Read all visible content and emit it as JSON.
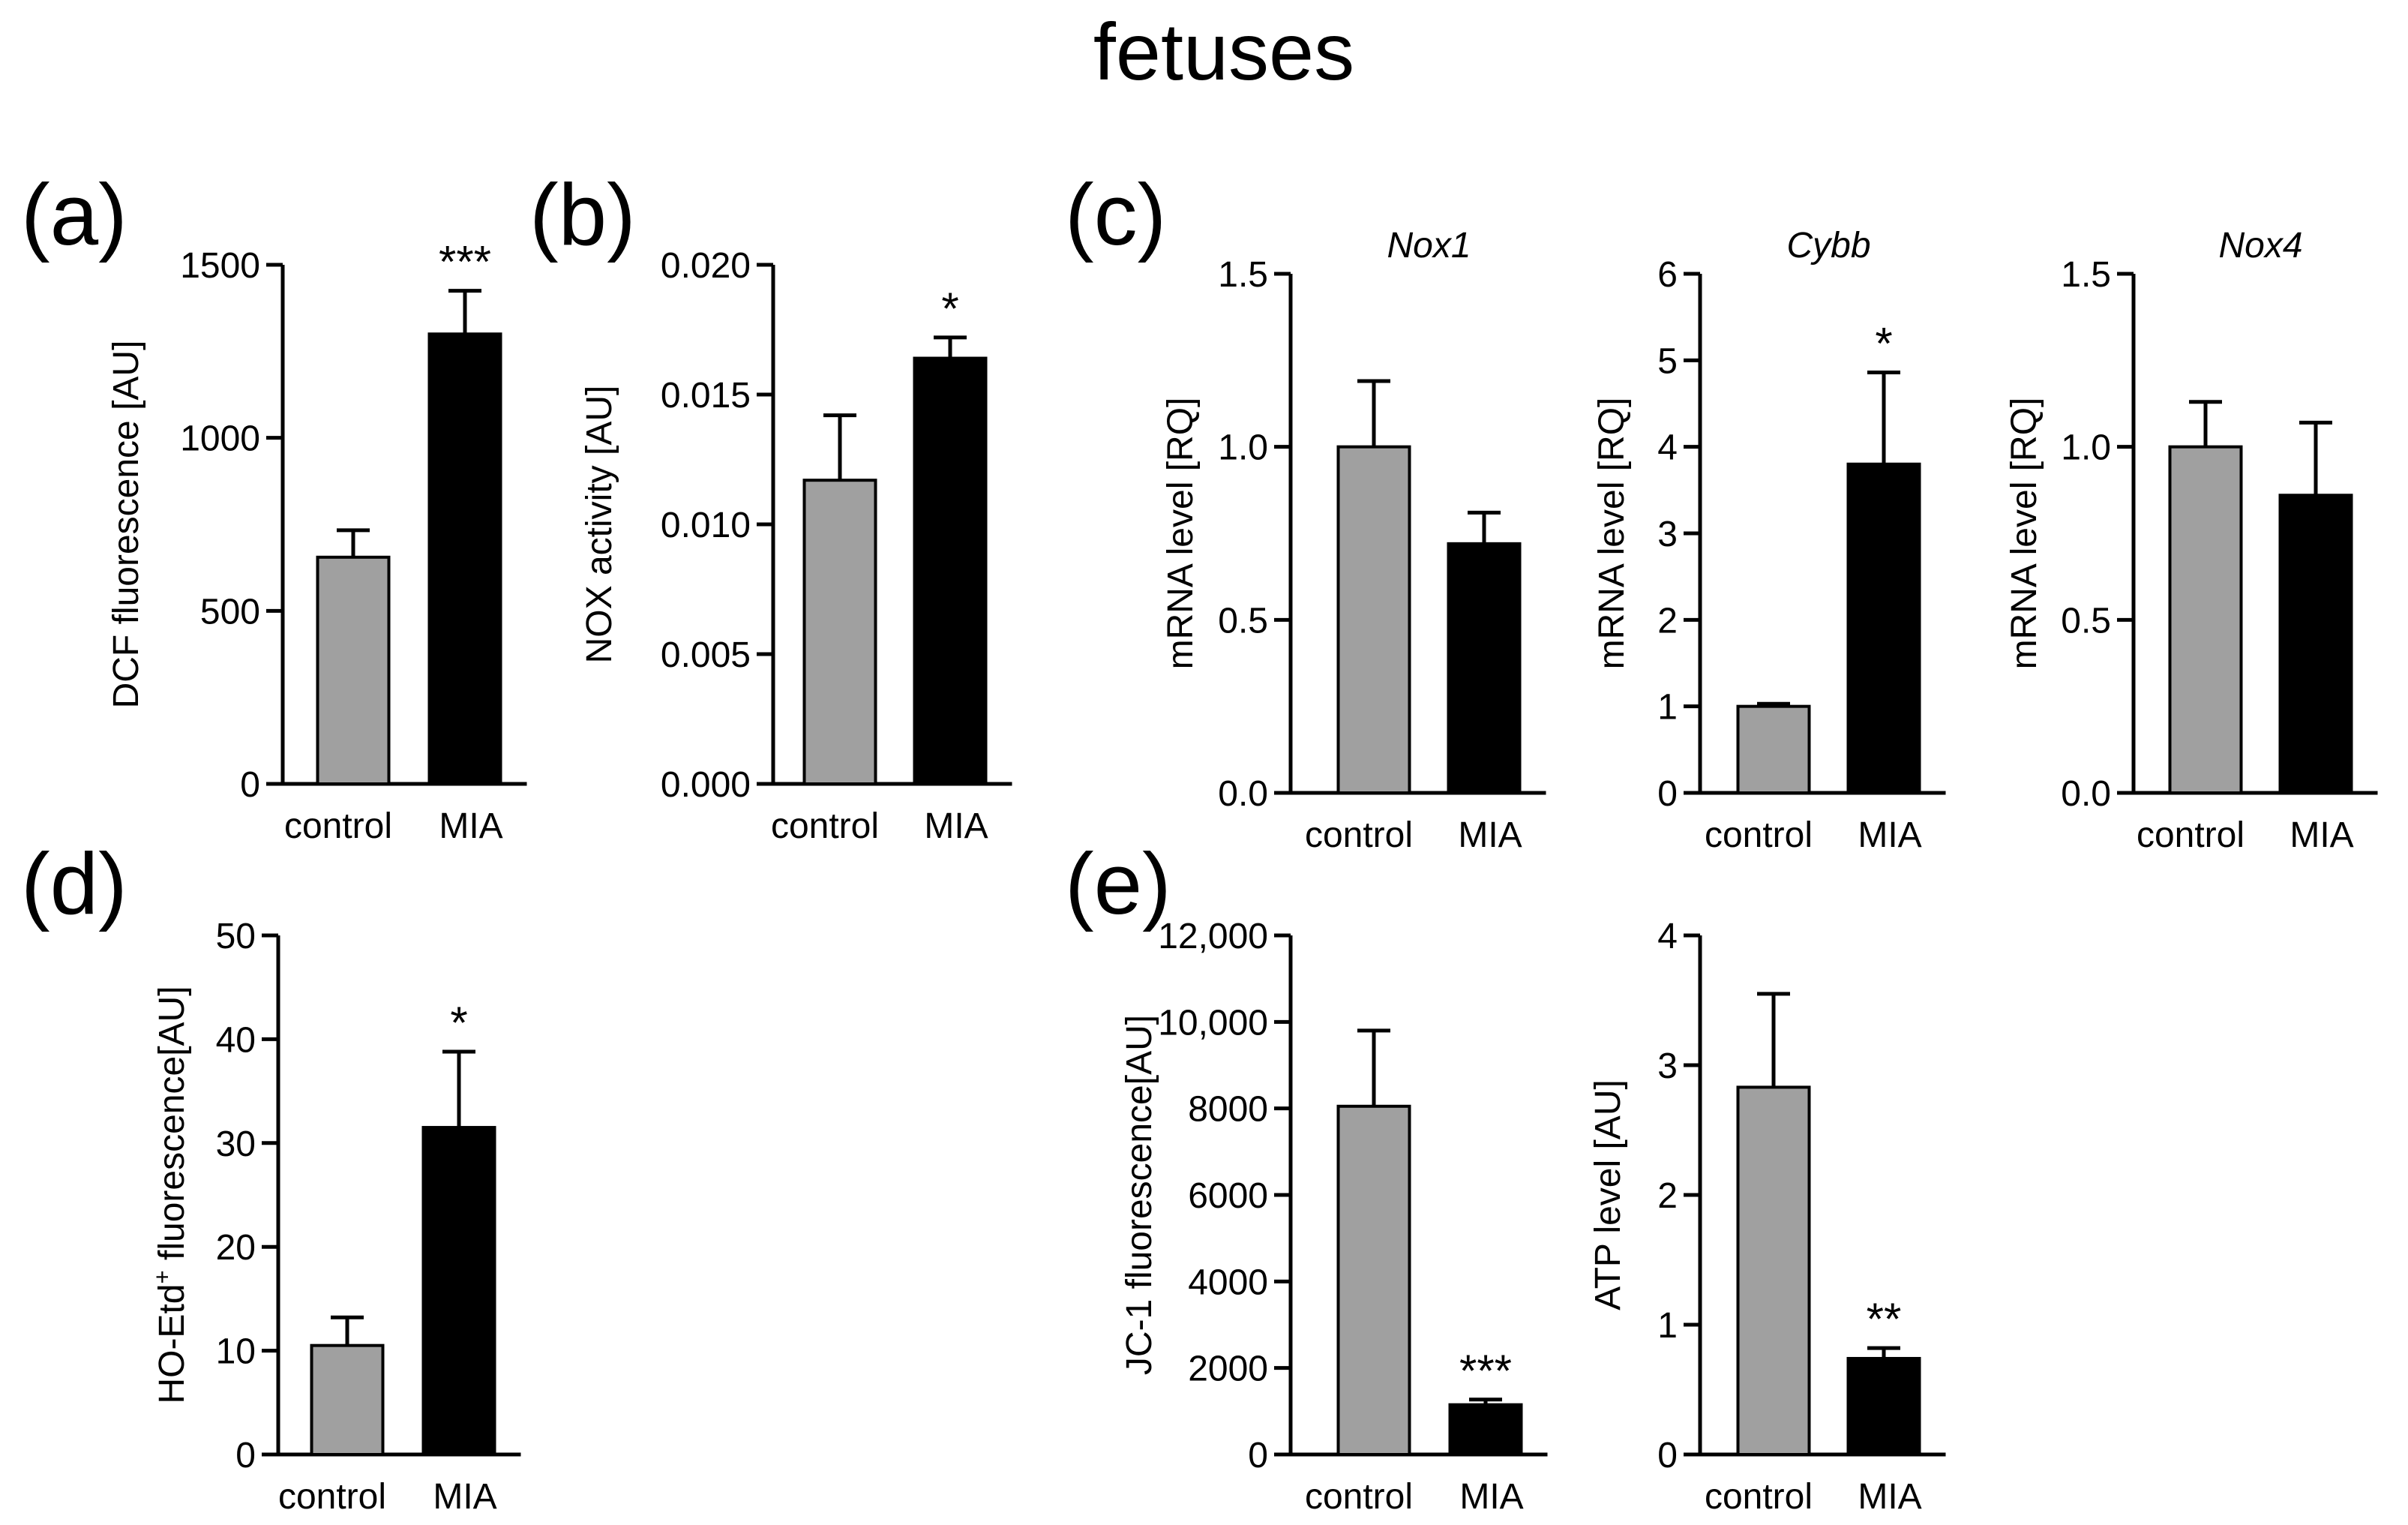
{
  "figure": {
    "title": "fetuses",
    "bar_colors": {
      "control": "#a0a0a0",
      "MIA": "#000000"
    },
    "panel_labels": [
      "(a)",
      "(b)",
      "(c)",
      "(d)",
      "(e)"
    ]
  },
  "chart_data": [
    {
      "id": "a",
      "type": "bar",
      "title": "",
      "categories": [
        "control",
        "MIA"
      ],
      "values": [
        655,
        1300
      ],
      "errors": [
        78,
        125
      ],
      "ylabel": "DCF fluorescence [AU]",
      "ylim": [
        0,
        1500
      ],
      "yticks": [
        0,
        500,
        1000,
        1500
      ],
      "ytick_labels": [
        "0",
        "500",
        "1000",
        "1500"
      ],
      "significance": [
        "",
        "***"
      ]
    },
    {
      "id": "b",
      "type": "bar",
      "title": "",
      "categories": [
        "control",
        "MIA"
      ],
      "values": [
        0.0117,
        0.0164
      ],
      "errors": [
        0.0025,
        0.0008
      ],
      "ylabel": "NOX activity [AU]",
      "ylim": [
        0,
        0.02
      ],
      "yticks": [
        0,
        0.005,
        0.01,
        0.015,
        0.02
      ],
      "ytick_labels": [
        "0.000",
        "0.005",
        "0.010",
        "0.015",
        "0.020"
      ],
      "significance": [
        "",
        "*"
      ]
    },
    {
      "id": "c1",
      "type": "bar",
      "title": "Nox1",
      "categories": [
        "control",
        "MIA"
      ],
      "values": [
        1.0,
        0.72
      ],
      "errors": [
        0.19,
        0.09
      ],
      "ylabel": "mRNA level [RQ]",
      "ylim": [
        0,
        1.5
      ],
      "yticks": [
        0,
        0.5,
        1.0,
        1.5
      ],
      "ytick_labels": [
        "0.0",
        "0.5",
        "1.0",
        "1.5"
      ],
      "significance": [
        "",
        ""
      ]
    },
    {
      "id": "c2",
      "type": "bar",
      "title": "Cybb",
      "categories": [
        "control",
        "MIA"
      ],
      "values": [
        1.0,
        3.8
      ],
      "errors": [
        0.03,
        1.06
      ],
      "ylabel": "mRNA level [RQ]",
      "ylim": [
        0,
        6
      ],
      "yticks": [
        0,
        1,
        2,
        3,
        4,
        5,
        6
      ],
      "ytick_labels": [
        "0",
        "1",
        "2",
        "3",
        "4",
        "5",
        "6"
      ],
      "significance": [
        "",
        "*"
      ]
    },
    {
      "id": "c3",
      "type": "bar",
      "title": "Nox4",
      "categories": [
        "control",
        "MIA"
      ],
      "values": [
        1.0,
        0.86
      ],
      "errors": [
        0.13,
        0.21
      ],
      "ylabel": "mRNA level [RQ]",
      "ylim": [
        0,
        1.5
      ],
      "yticks": [
        0,
        0.5,
        1.0,
        1.5
      ],
      "ytick_labels": [
        "0.0",
        "0.5",
        "1.0",
        "1.5"
      ],
      "significance": [
        "",
        ""
      ]
    },
    {
      "id": "d",
      "type": "bar",
      "title": "",
      "categories": [
        "control",
        "MIA"
      ],
      "values": [
        10.5,
        31.5
      ],
      "errors": [
        2.7,
        7.3
      ],
      "ylabel": "HO-Etd",
      "ylabel_sup": "+",
      "ylabel_suffix": " fluorescence[AU]",
      "ylim": [
        0,
        50
      ],
      "yticks": [
        0,
        10,
        20,
        30,
        40,
        50
      ],
      "ytick_labels": [
        "0",
        "10",
        "20",
        "30",
        "40",
        "50"
      ],
      "significance": [
        "",
        "*"
      ]
    },
    {
      "id": "e1",
      "type": "bar",
      "title": "",
      "categories": [
        "control",
        "MIA"
      ],
      "values": [
        8050,
        1150
      ],
      "errors": [
        1750,
        120
      ],
      "ylabel": "JC-1 fluorescence[AU]",
      "ylim": [
        0,
        12000
      ],
      "yticks": [
        0,
        2000,
        4000,
        6000,
        8000,
        10000,
        12000
      ],
      "ytick_labels": [
        "0",
        "2000",
        "4000",
        "6000",
        "8000",
        "10,000",
        "12,000"
      ],
      "significance": [
        "",
        "***"
      ]
    },
    {
      "id": "e2",
      "type": "bar",
      "title": "",
      "categories": [
        "control",
        "MIA"
      ],
      "values": [
        2.83,
        0.74
      ],
      "errors": [
        0.72,
        0.08
      ],
      "ylabel": "ATP level [AU]",
      "ylim": [
        0,
        4
      ],
      "yticks": [
        0,
        1,
        2,
        3,
        4
      ],
      "ytick_labels": [
        "0",
        "1",
        "2",
        "3",
        "4"
      ],
      "significance": [
        "",
        "**"
      ]
    }
  ]
}
